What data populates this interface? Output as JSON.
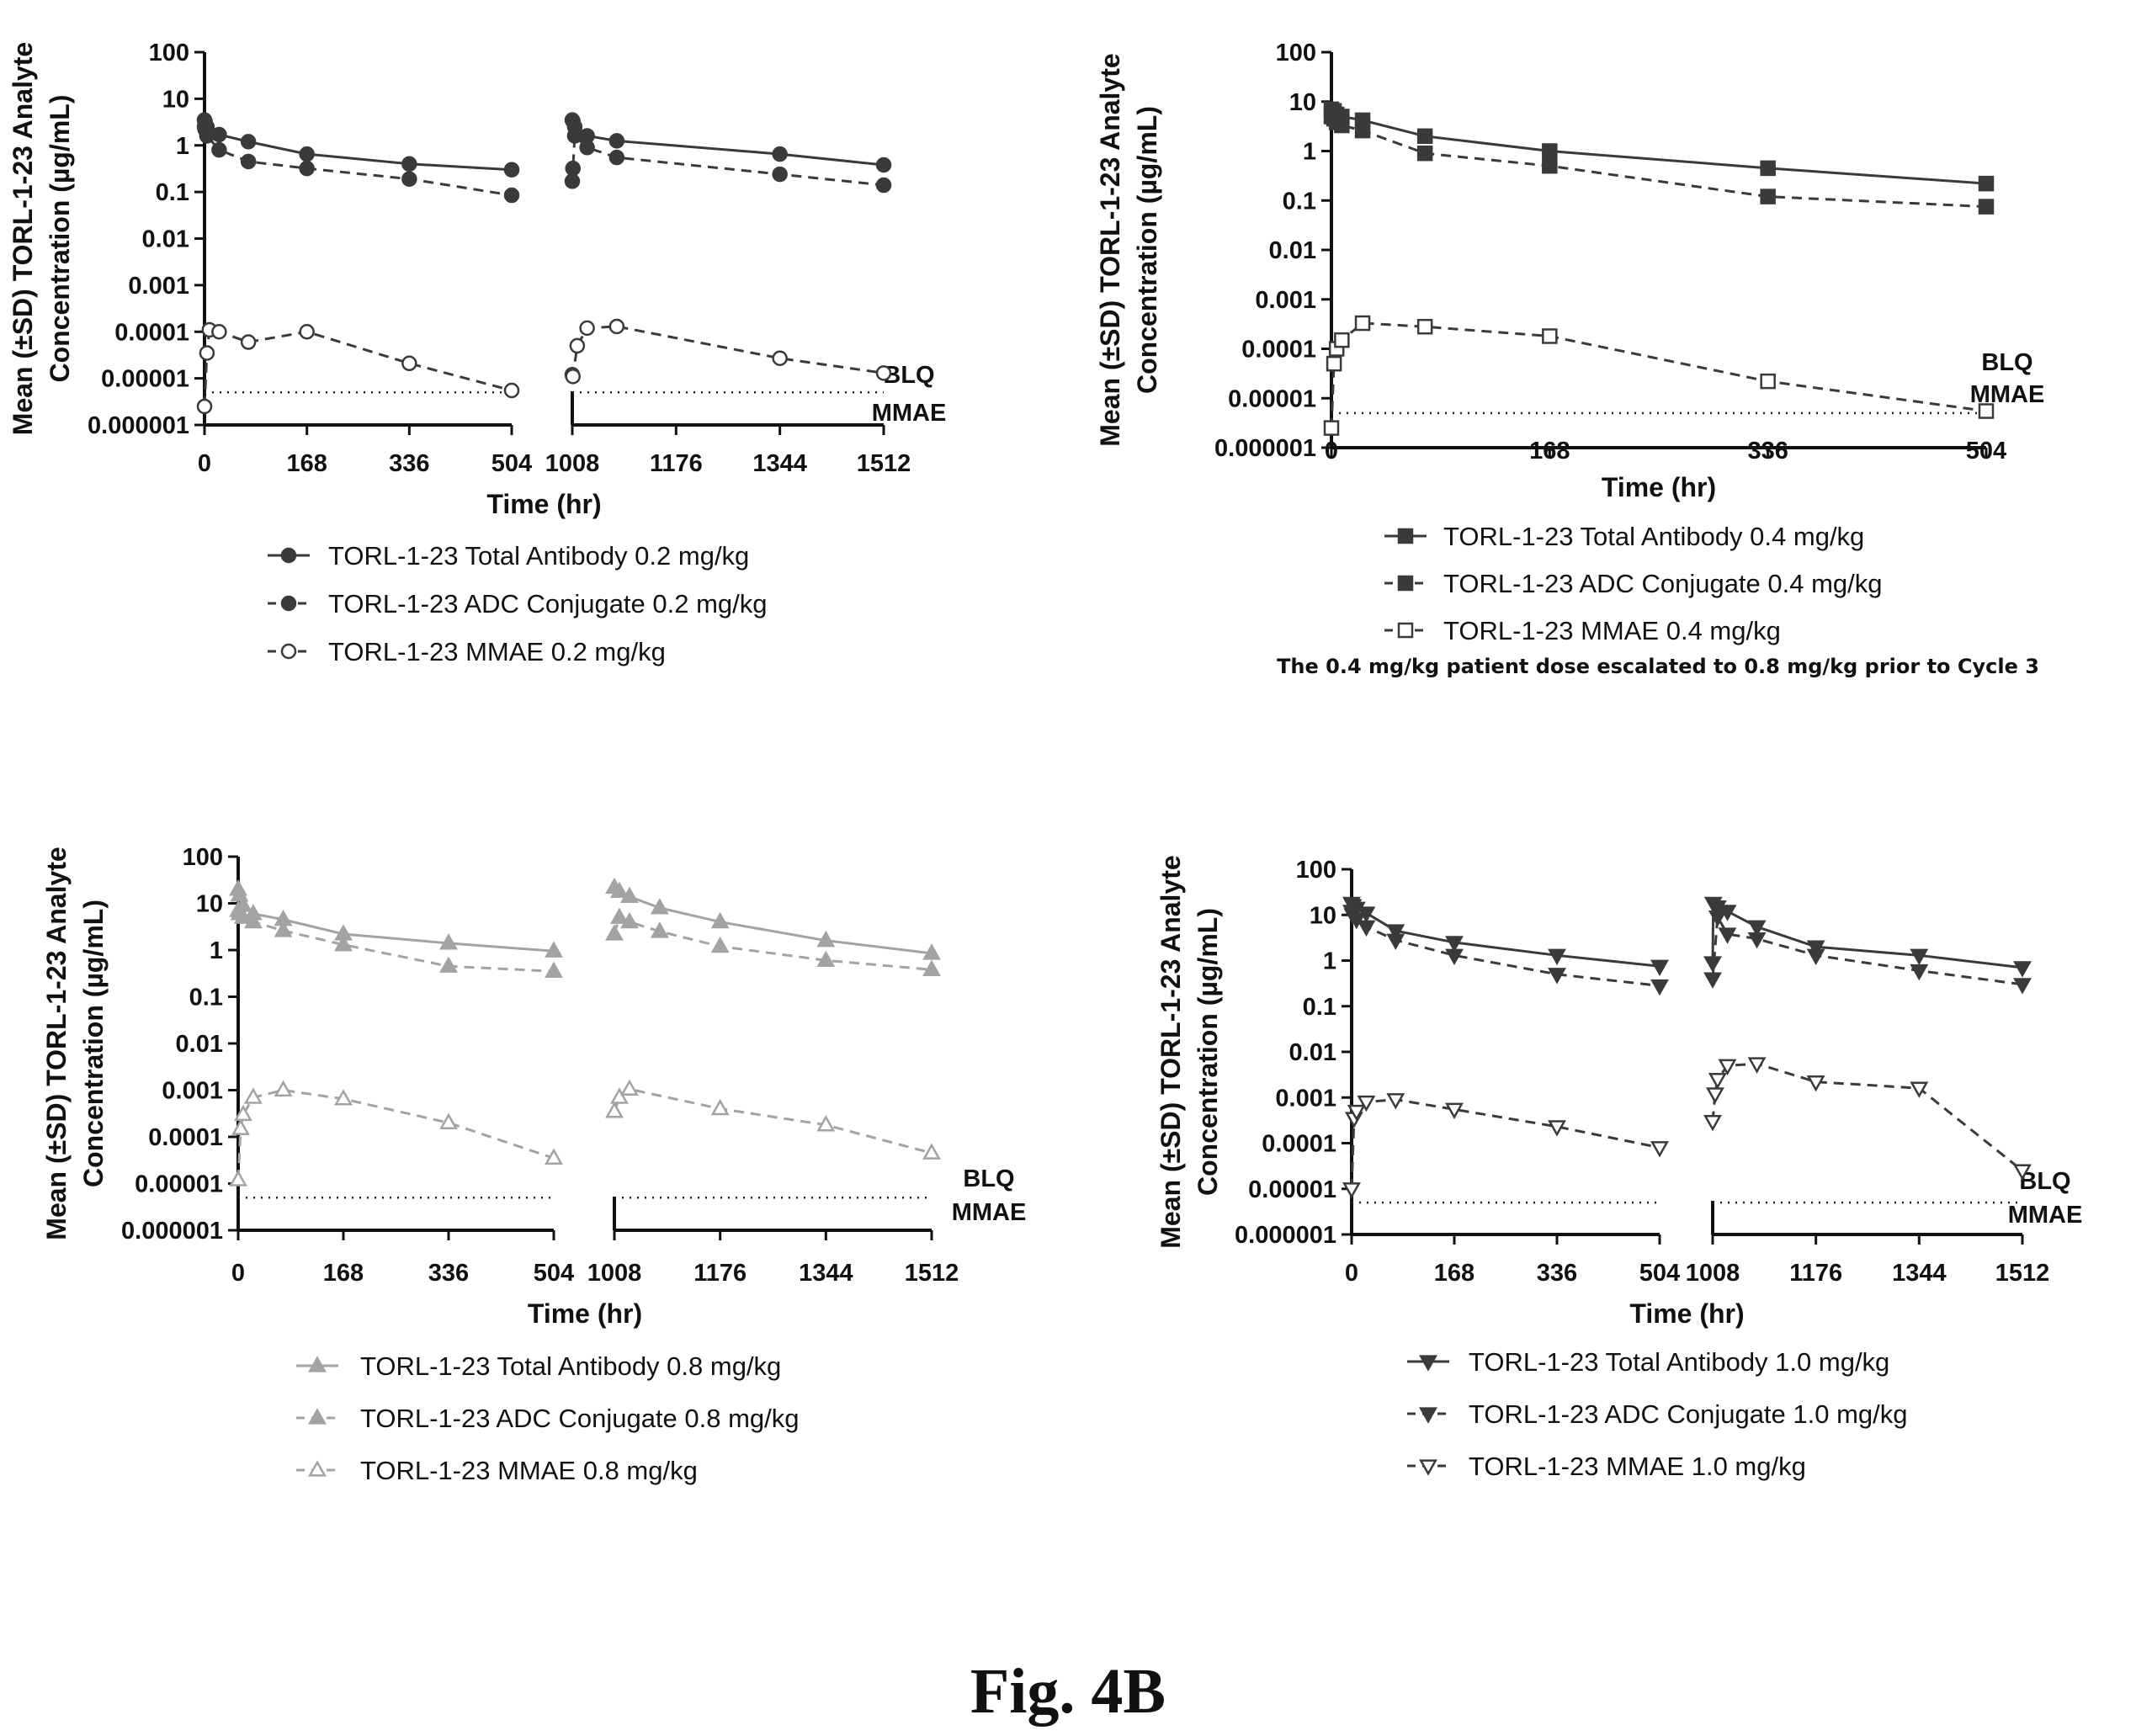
{
  "figure_label": "Fig. 4B",
  "colors": {
    "dark": "#3a3a3a",
    "light": "#a3a3a3",
    "axis": "#111111",
    "blq": "#222222"
  },
  "chart_data": [
    {
      "type": "line",
      "panel": "0.2 mg/kg",
      "ylabel_line1": "Mean (±SD) TORL-1-23 Analyte",
      "ylabel_line2": "Concentration (µg/mL)",
      "xlabel": "Time (hr)",
      "yscale": "log",
      "ylim": [
        1e-06,
        100
      ],
      "y_ticks": [
        "100",
        "10",
        "1",
        "0.1",
        "0.01",
        "0.001",
        "0.0001",
        "0.00001",
        "0.000001"
      ],
      "x_segments": [
        [
          0,
          504
        ],
        [
          1008,
          1512
        ]
      ],
      "x_ticks": [
        {
          "value": 0,
          "label": "0"
        },
        {
          "value": 168,
          "label": "168"
        },
        {
          "value": 336,
          "label": "336"
        },
        {
          "value": 504,
          "label": "504"
        },
        {
          "value": 1008,
          "label": "1008"
        },
        {
          "value": 1176,
          "label": "1176"
        },
        {
          "value": 1344,
          "label": "1344"
        },
        {
          "value": 1512,
          "label": "1512"
        }
      ],
      "blq_value": 5e-06,
      "blq_label": [
        "BLQ",
        "MMAE"
      ],
      "series": [
        {
          "name": "TORL-1-23 Total Antibody 0.2 mg/kg",
          "marker": "circle",
          "filled": true,
          "dashed": false,
          "color": "dark",
          "x": [
            0,
            1,
            4,
            24,
            72,
            168,
            336,
            504,
            1008,
            1009,
            1012,
            1032,
            1080,
            1344,
            1512
          ],
          "y": [
            3.5,
            3.2,
            2.5,
            1.7,
            1.2,
            0.65,
            0.4,
            0.3,
            3.5,
            3.3,
            2.5,
            1.6,
            1.25,
            0.65,
            0.38
          ]
        },
        {
          "name": "TORL-1-23 ADC Conjugate 0.2 mg/kg",
          "marker": "circle",
          "filled": true,
          "dashed": true,
          "color": "dark",
          "x": [
            0,
            1,
            4,
            24,
            72,
            168,
            336,
            504,
            1008,
            1009,
            1012,
            1032,
            1080,
            1344,
            1512
          ],
          "y": [
            2.5,
            2.2,
            1.6,
            0.8,
            0.45,
            0.32,
            0.19,
            0.085,
            0.17,
            0.32,
            1.6,
            0.9,
            0.55,
            0.24,
            0.14
          ]
        },
        {
          "name": "TORL-1-23 MMAE 0.2 mg/kg",
          "marker": "circle",
          "filled": false,
          "dashed": true,
          "color": "dark",
          "x": [
            0,
            4,
            8,
            24,
            72,
            168,
            336,
            504,
            1008,
            1009,
            1016,
            1032,
            1080,
            1344,
            1512
          ],
          "y": [
            2.5e-06,
            3.5e-05,
            0.00011,
            0.0001,
            6e-05,
            0.0001,
            2.1e-05,
            5.5e-06,
            1.2e-05,
            1.1e-05,
            5e-05,
            0.00012,
            0.00013,
            2.7e-05,
            1.3e-05
          ]
        }
      ]
    },
    {
      "type": "line",
      "panel": "0.4 mg/kg",
      "ylabel_line1": "Mean (±SD) TORL-1-23 Analyte",
      "ylabel_line2": "Concentration (µg/mL)",
      "xlabel": "Time (hr)",
      "yscale": "log",
      "ylim": [
        1e-06,
        100
      ],
      "y_ticks": [
        "100",
        "10",
        "1",
        "0.1",
        "0.01",
        "0.001",
        "0.0001",
        "0.00001",
        "0.000001"
      ],
      "x_segments": [
        [
          0,
          504
        ]
      ],
      "x_ticks": [
        {
          "value": 0,
          "label": "0"
        },
        {
          "value": 168,
          "label": "168"
        },
        {
          "value": 336,
          "label": "336"
        },
        {
          "value": 504,
          "label": "504"
        }
      ],
      "blq_value": 5e-06,
      "blq_label": [
        "BLQ",
        "MMAE"
      ],
      "note": "The 0.4 mg/kg patient dose escalated to 0.8 mg/kg prior to Cycle 3",
      "series": [
        {
          "name": "TORL-1-23 Total Antibody 0.4 mg/kg",
          "marker": "square",
          "filled": true,
          "dashed": false,
          "color": "dark",
          "x": [
            0,
            2,
            4,
            8,
            24,
            72,
            168,
            336,
            504
          ],
          "y": [
            7,
            6.5,
            5.5,
            5,
            4.2,
            2,
            1,
            0.45,
            0.22
          ]
        },
        {
          "name": "TORL-1-23 ADC Conjugate 0.4 mg/kg",
          "marker": "square",
          "filled": true,
          "dashed": true,
          "color": "dark",
          "x": [
            0,
            2,
            4,
            8,
            24,
            72,
            168,
            336,
            504
          ],
          "y": [
            5,
            4.5,
            3.8,
            3.3,
            2.6,
            0.9,
            0.5,
            0.12,
            0.075
          ]
        },
        {
          "name": "TORL-1-23 MMAE 0.4 mg/kg",
          "marker": "square",
          "filled": false,
          "dashed": true,
          "color": "dark",
          "x": [
            0,
            2,
            4,
            8,
            24,
            72,
            168,
            336,
            504
          ],
          "y": [
            2.5e-06,
            5e-05,
            0.0001,
            0.00015,
            0.00033,
            0.00028,
            0.00018,
            2.2e-05,
            5.5e-06
          ]
        }
      ]
    },
    {
      "type": "line",
      "panel": "0.8 mg/kg",
      "ylabel_line1": "Mean (±SD) TORL-1-23 Analyte",
      "ylabel_line2": "Concentration (µg/mL)",
      "xlabel": "Time (hr)",
      "yscale": "log",
      "ylim": [
        1e-06,
        100
      ],
      "y_ticks": [
        "100",
        "10",
        "1",
        "0.1",
        "0.01",
        "0.001",
        "0.0001",
        "0.00001",
        "0.000001"
      ],
      "x_segments": [
        [
          0,
          504
        ],
        [
          1008,
          1512
        ]
      ],
      "x_ticks": [
        {
          "value": 0,
          "label": "0"
        },
        {
          "value": 168,
          "label": "168"
        },
        {
          "value": 336,
          "label": "336"
        },
        {
          "value": 504,
          "label": "504"
        },
        {
          "value": 1008,
          "label": "1008"
        },
        {
          "value": 1176,
          "label": "1176"
        },
        {
          "value": 1344,
          "label": "1344"
        },
        {
          "value": 1512,
          "label": "1512"
        }
      ],
      "blq_value": 5e-06,
      "blq_label": [
        "BLQ",
        "MMAE"
      ],
      "series": [
        {
          "name": "TORL-1-23 Total Antibody 0.8 mg/kg",
          "marker": "triangle-up",
          "filled": true,
          "dashed": false,
          "color": "light",
          "x": [
            0,
            2,
            8,
            24,
            72,
            168,
            336,
            504,
            1008,
            1016,
            1032,
            1080,
            1176,
            1344,
            1512
          ],
          "y": [
            20,
            15,
            9,
            6,
            4.5,
            2.2,
            1.4,
            0.95,
            22,
            18,
            14,
            8,
            4,
            1.6,
            0.85
          ]
        },
        {
          "name": "TORL-1-23 ADC Conjugate 0.8 mg/kg",
          "marker": "triangle-up",
          "filled": true,
          "dashed": true,
          "color": "light",
          "x": [
            0,
            2,
            8,
            24,
            72,
            168,
            336,
            504,
            1008,
            1016,
            1032,
            1080,
            1176,
            1344,
            1512
          ],
          "y": [
            7,
            6,
            5,
            4,
            2.6,
            1.3,
            0.45,
            0.35,
            2.2,
            5,
            4,
            2.5,
            1.2,
            0.6,
            0.38
          ]
        },
        {
          "name": "TORL-1-23 MMAE 0.8 mg/kg",
          "marker": "triangle-up",
          "filled": false,
          "dashed": true,
          "color": "light",
          "x": [
            0,
            4,
            8,
            24,
            72,
            168,
            336,
            504,
            1008,
            1016,
            1032,
            1176,
            1344,
            1512
          ],
          "y": [
            1.2e-05,
            0.00015,
            0.0003,
            0.0007,
            0.001,
            0.00065,
            0.0002,
            3.5e-05,
            0.00035,
            0.0007,
            0.00105,
            0.0004,
            0.00018,
            4.5e-05
          ]
        }
      ]
    },
    {
      "type": "line",
      "panel": "1.0 mg/kg",
      "ylabel_line1": "Mean (±SD) TORL-1-23 Analyte",
      "ylabel_line2": "Concentration (µg/mL)",
      "xlabel": "Time (hr)",
      "yscale": "log",
      "ylim": [
        1e-06,
        100
      ],
      "y_ticks": [
        "100",
        "10",
        "1",
        "0.1",
        "0.01",
        "0.001",
        "0.0001",
        "0.00001",
        "0.000001"
      ],
      "x_segments": [
        [
          0,
          504
        ],
        [
          1008,
          1512
        ]
      ],
      "x_ticks": [
        {
          "value": 0,
          "label": "0"
        },
        {
          "value": 168,
          "label": "168"
        },
        {
          "value": 336,
          "label": "336"
        },
        {
          "value": 504,
          "label": "504"
        },
        {
          "value": 1008,
          "label": "1008"
        },
        {
          "value": 1176,
          "label": "1176"
        },
        {
          "value": 1344,
          "label": "1344"
        },
        {
          "value": 1512,
          "label": "1512"
        }
      ],
      "blq_value": 5e-06,
      "blq_label": [
        "BLQ",
        "MMAE"
      ],
      "series": [
        {
          "name": "TORL-1-23 Total Antibody 1.0 mg/kg",
          "marker": "triangle-down",
          "filled": true,
          "dashed": false,
          "color": "dark",
          "x": [
            0,
            2,
            8,
            24,
            72,
            168,
            336,
            504,
            1008,
            1009,
            1016,
            1032,
            1080,
            1176,
            1344,
            1512
          ],
          "y": [
            18,
            16,
            14,
            11,
            4.5,
            2.5,
            1.3,
            0.75,
            0.9,
            18,
            15,
            12,
            5.5,
            2,
            1.3,
            0.7
          ]
        },
        {
          "name": "TORL-1-23 ADC Conjugate 1.0 mg/kg",
          "marker": "triangle-down",
          "filled": true,
          "dashed": true,
          "color": "dark",
          "x": [
            0,
            2,
            8,
            24,
            72,
            168,
            336,
            504,
            1008,
            1016,
            1032,
            1080,
            1176,
            1344,
            1512
          ],
          "y": [
            12,
            10,
            8,
            5.5,
            2.8,
            1.3,
            0.5,
            0.28,
            0.4,
            9,
            3.8,
            3,
            1.3,
            0.6,
            0.3
          ]
        },
        {
          "name": "TORL-1-23 MMAE 1.0 mg/kg",
          "marker": "triangle-down",
          "filled": false,
          "dashed": true,
          "color": "dark",
          "x": [
            0,
            4,
            8,
            24,
            72,
            168,
            336,
            504,
            1008,
            1012,
            1016,
            1032,
            1080,
            1176,
            1344,
            1512
          ],
          "y": [
            1e-05,
            0.00035,
            0.0005,
            0.0008,
            0.0009,
            0.00055,
            0.00023,
            8e-05,
            0.0003,
            0.0012,
            0.0025,
            0.005,
            0.0055,
            0.0022,
            0.0016,
            2.5e-05
          ]
        }
      ]
    }
  ]
}
